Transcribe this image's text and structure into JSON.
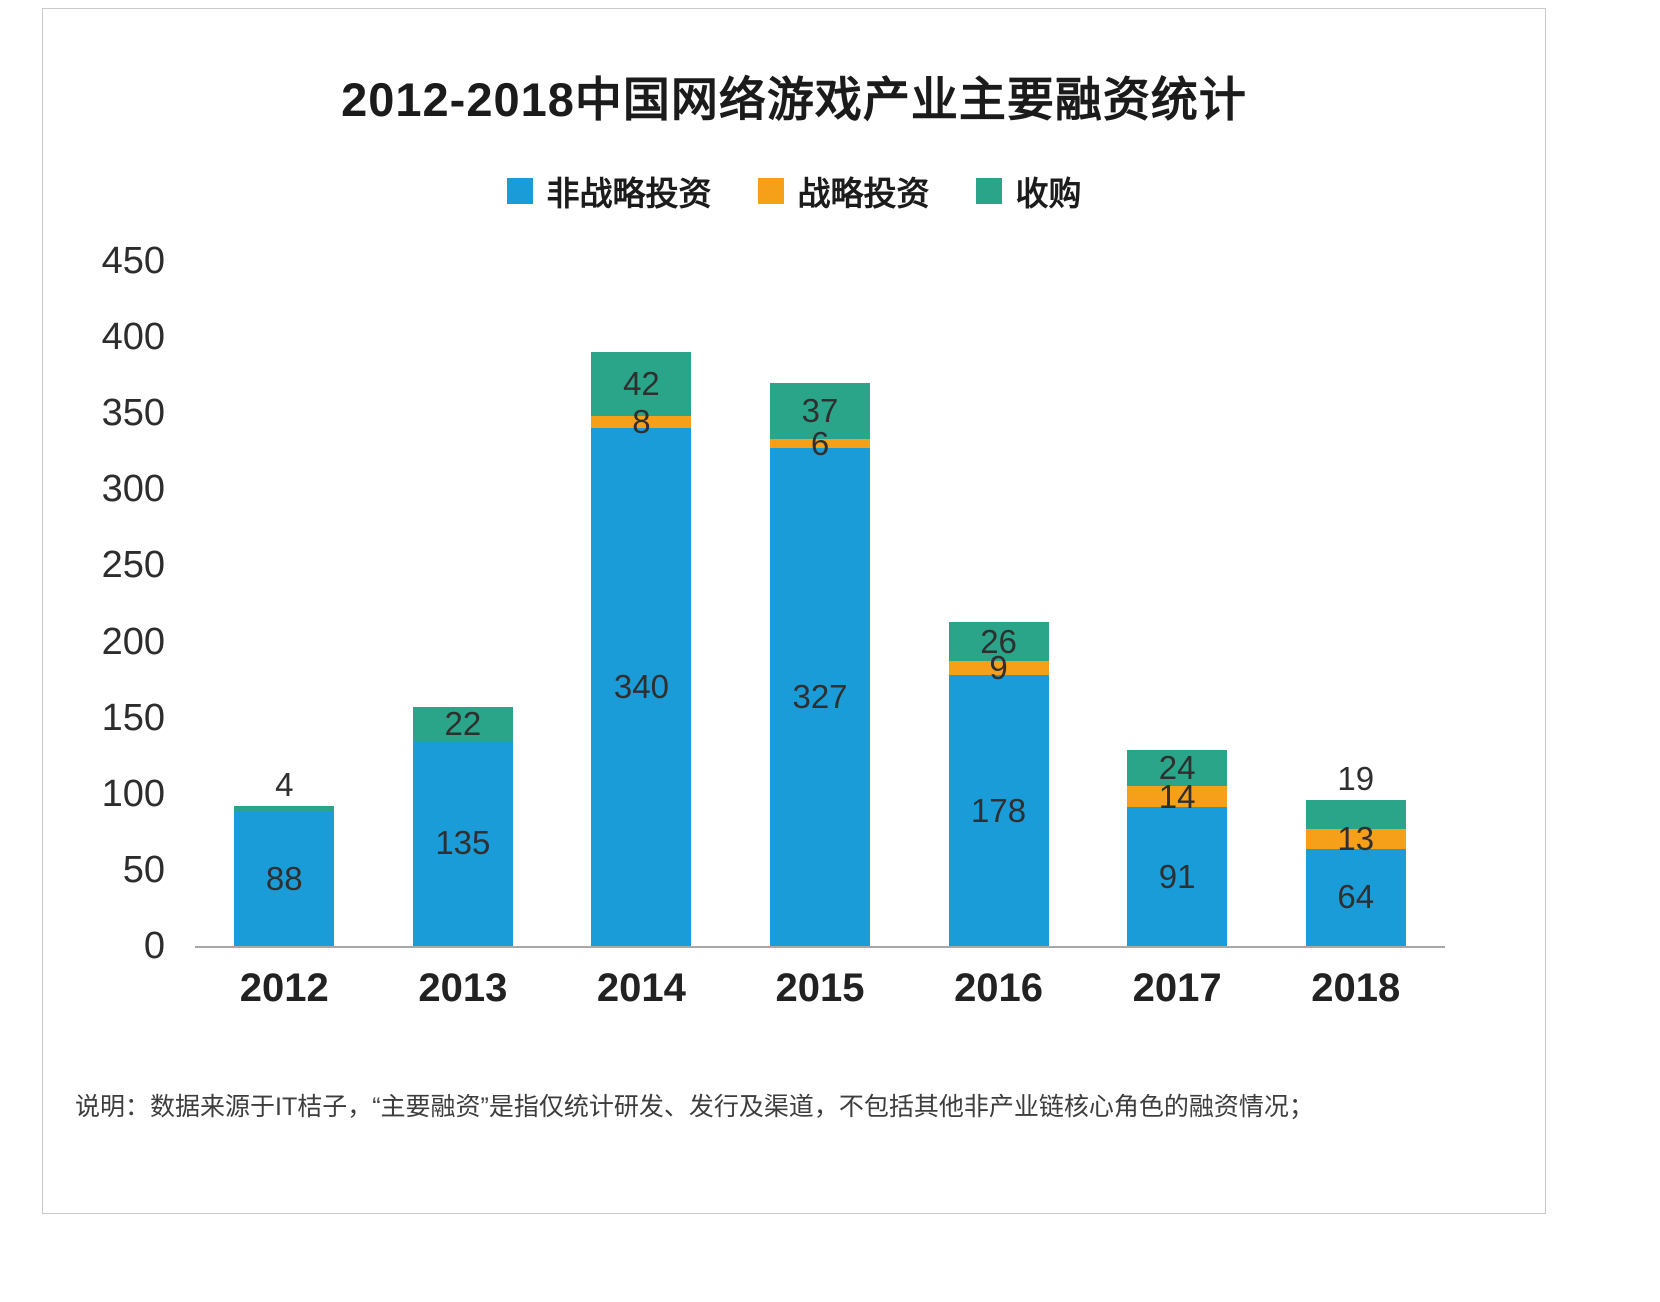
{
  "colors": {
    "non_strategic": "#1a9cd8",
    "strategic": "#f6a01a",
    "acquisition": "#2aa58a"
  },
  "footnote": "说明：数据来源于IT桔子，“主要融资”是指仅统计研发、发行及渠道，不包括其他非产业链核心角色的融资情况；",
  "chart_data": {
    "type": "bar",
    "stacked": true,
    "title": "2012-2018中国网络游戏产业主要融资统计",
    "categories": [
      "2012",
      "2013",
      "2014",
      "2015",
      "2016",
      "2017",
      "2018"
    ],
    "series": [
      {
        "name": "非战略投资",
        "color_key": "non_strategic",
        "values": [
          88,
          135,
          340,
          327,
          178,
          91,
          64
        ]
      },
      {
        "name": "战略投资",
        "color_key": "strategic",
        "values": [
          0,
          0,
          8,
          6,
          9,
          14,
          13
        ]
      },
      {
        "name": "收购",
        "color_key": "acquisition",
        "values": [
          4,
          22,
          42,
          37,
          26,
          24,
          19
        ]
      }
    ],
    "ylim": [
      0,
      450
    ],
    "ytick_step": 50,
    "grid": false,
    "legend_position": "top"
  }
}
